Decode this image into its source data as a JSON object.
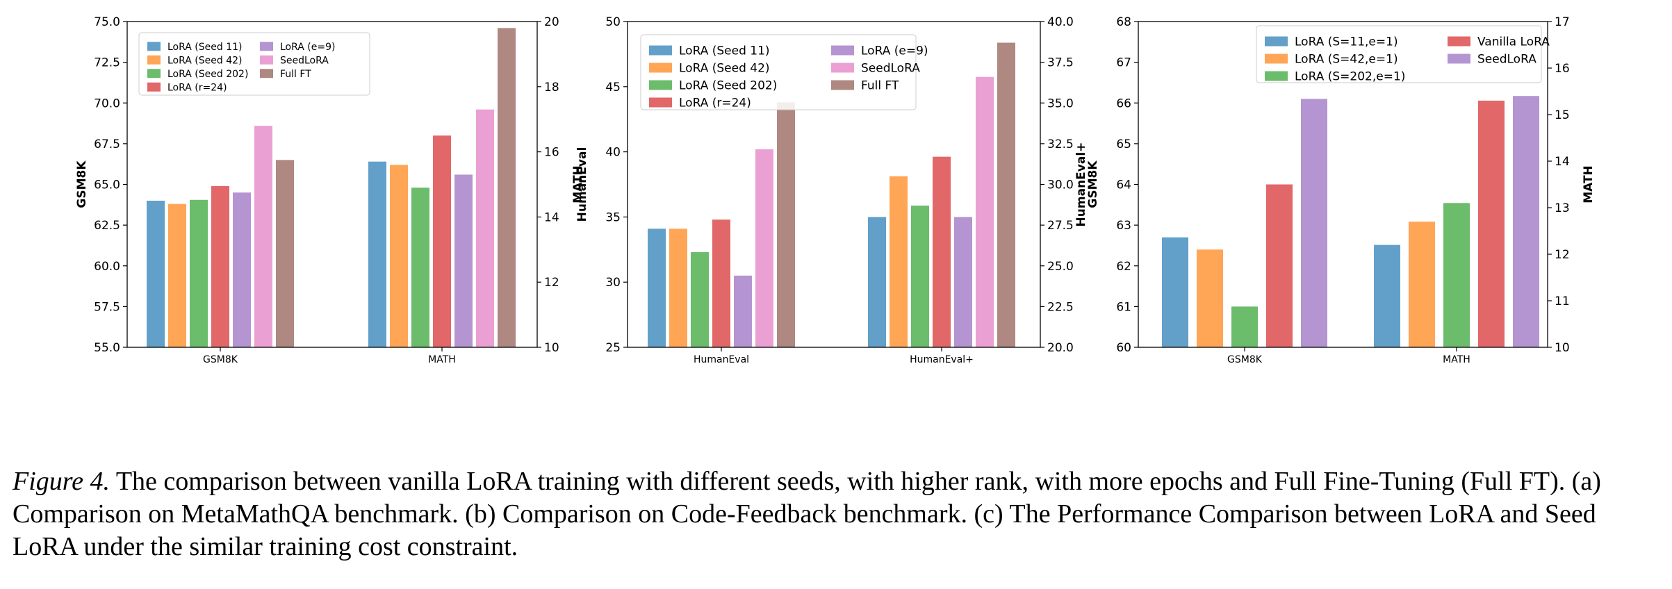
{
  "chart_data": [
    {
      "type": "bar",
      "subcaption": "(a) MetaMathQA",
      "categories": [
        "GSM8K",
        "MATH"
      ],
      "ylabel_left": "GSM8K",
      "ylabel_right": "MATH",
      "ylim_left": [
        55.0,
        75.0
      ],
      "ylim_right": [
        10,
        20
      ],
      "yticks_left": [
        "55.0",
        "57.5",
        "60.0",
        "62.5",
        "65.0",
        "67.5",
        "70.0",
        "72.5",
        "75.0"
      ],
      "yticks_right": [
        "10",
        "12",
        "14",
        "16",
        "18",
        "20"
      ],
      "legend_ncol": 2,
      "series": [
        {
          "name": "LoRA (Seed 11)",
          "color": "#1f77b4",
          "values": [
            64.0,
            15.7
          ]
        },
        {
          "name": "LoRA (Seed 42)",
          "color": "#ff7f0e",
          "values": [
            63.8,
            15.6
          ]
        },
        {
          "name": "LoRA (Seed 202)",
          "color": "#2ca02c",
          "values": [
            64.05,
            14.9
          ]
        },
        {
          "name": "LoRA (r=24)",
          "color": "#d62728",
          "values": [
            64.9,
            16.5
          ]
        },
        {
          "name": "LoRA (e=9)",
          "color": "#9467bd",
          "values": [
            64.5,
            15.3
          ]
        },
        {
          "name": "SeedLoRA",
          "color": "#e377c2",
          "values": [
            68.6,
            17.3
          ]
        },
        {
          "name": "Full FT",
          "color": "#8c564b",
          "values": [
            66.5,
            19.8
          ]
        }
      ]
    },
    {
      "type": "bar",
      "subcaption": "(b) Code-Feedback",
      "categories": [
        "HumanEval",
        "HumanEval+"
      ],
      "ylabel_left": "HumanEval",
      "ylabel_right": "HumanEval+",
      "ylim_left": [
        25,
        50
      ],
      "ylim_right": [
        20.0,
        40.0
      ],
      "yticks_left": [
        "25",
        "30",
        "35",
        "40",
        "45",
        "50"
      ],
      "yticks_right": [
        "20.0",
        "22.5",
        "25.0",
        "27.5",
        "30.0",
        "32.5",
        "35.0",
        "37.5",
        "40.0"
      ],
      "legend_ncol": 2,
      "series": [
        {
          "name": "LoRA (Seed 11)",
          "color": "#1f77b4",
          "values": [
            34.1,
            28.0
          ]
        },
        {
          "name": "LoRA (Seed 42)",
          "color": "#ff7f0e",
          "values": [
            34.1,
            30.5
          ]
        },
        {
          "name": "LoRA (Seed 202)",
          "color": "#2ca02c",
          "values": [
            32.3,
            28.7
          ]
        },
        {
          "name": "LoRA (r=24)",
          "color": "#d62728",
          "values": [
            34.8,
            31.7
          ]
        },
        {
          "name": "LoRA (e=9)",
          "color": "#9467bd",
          "values": [
            30.5,
            28.0
          ]
        },
        {
          "name": "SeedLoRA",
          "color": "#e377c2",
          "values": [
            40.2,
            36.6
          ]
        },
        {
          "name": "Full FT",
          "color": "#8c564b",
          "values": [
            43.8,
            38.7
          ]
        }
      ]
    },
    {
      "type": "bar",
      "subcaption": "(c) LoRA vs SeedLoRA",
      "categories": [
        "GSM8K",
        "MATH"
      ],
      "ylabel_left": "GSM8K",
      "ylabel_right": "MATH",
      "ylim_left": [
        60,
        68
      ],
      "ylim_right": [
        10,
        17
      ],
      "yticks_left": [
        "60",
        "61",
        "62",
        "63",
        "64",
        "65",
        "66",
        "67",
        "68"
      ],
      "yticks_right": [
        "10",
        "11",
        "12",
        "13",
        "14",
        "15",
        "16",
        "17"
      ],
      "legend_ncol": 2,
      "series": [
        {
          "name": "LoRA (S=11,e=1)",
          "color": "#1f77b4",
          "values": [
            62.7,
            12.2
          ]
        },
        {
          "name": "LoRA (S=42,e=1)",
          "color": "#ff7f0e",
          "values": [
            62.4,
            12.7
          ]
        },
        {
          "name": "LoRA (S=202,e=1)",
          "color": "#2ca02c",
          "values": [
            61.0,
            13.1
          ]
        },
        {
          "name": "Vanilla LoRA",
          "color": "#d62728",
          "values": [
            64.0,
            15.3
          ]
        },
        {
          "name": "SeedLoRA",
          "color": "#9467bd",
          "values": [
            66.1,
            15.4
          ]
        }
      ]
    }
  ],
  "caption": {
    "label": "Figure 4.",
    "text": " The comparison between vanilla LoRA training with different seeds, with higher rank, with more epochs and Full Fine-Tuning (Full FT). (a) Comparison on MetaMathQA benchmark. (b) Comparison on Code-Feedback benchmark. (c) The Performance Comparison between LoRA and Seed LoRA under the similar training cost constraint."
  }
}
